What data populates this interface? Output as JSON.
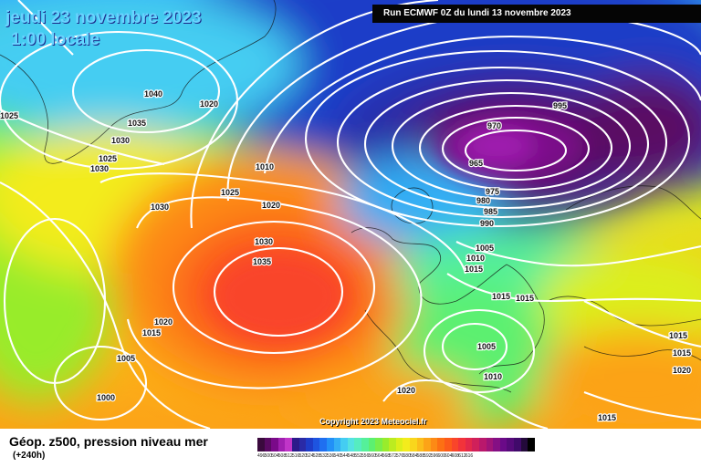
{
  "header": {
    "date": "jeudi 23 novembre 2023",
    "time": "1:00 locale",
    "run": "Run ECMWF 0Z du lundi 13 novembre 2023"
  },
  "copyright": "Copyright 2023 Meteociel.fr",
  "legend": {
    "title": "Géop. z500, pression niveau mer",
    "range": "(+240h)",
    "colors": [
      "#3a0a3d",
      "#5a0a63",
      "#7a0a89",
      "#a01fb0",
      "#c035c8",
      "#2b1a8a",
      "#2a2aa6",
      "#1e3cc8",
      "#1e54e0",
      "#1f6ff0",
      "#2290f7",
      "#33aef5",
      "#44cdf2",
      "#54e2e2",
      "#56ecc0",
      "#55f09a",
      "#5cf070",
      "#78ee4a",
      "#98ec2c",
      "#bcec20",
      "#dcef1a",
      "#f3ec1c",
      "#f9d61c",
      "#fbbd1a",
      "#fca317",
      "#fd8a15",
      "#fd7013",
      "#fc5a1a",
      "#f9452a",
      "#f2333a",
      "#e3284a",
      "#d0205a",
      "#b9186c",
      "#a01478",
      "#850f84",
      "#6a0a88",
      "#560a7a",
      "#400a6a",
      "#230a3a",
      "#000000"
    ],
    "ticks": [
      "496",
      "500",
      "504",
      "508",
      "512",
      "516",
      "520",
      "524",
      "528",
      "532",
      "536",
      "540",
      "544",
      "548",
      "552",
      "556",
      "560",
      "564",
      "568",
      "572",
      "576",
      "580",
      "584",
      "588",
      "592",
      "596",
      "600",
      "604",
      "608",
      "612",
      "616"
    ]
  },
  "isobar_labels": [
    {
      "text": "1040"
    },
    {
      "text": "1020"
    },
    {
      "text": "1025"
    },
    {
      "text": "1035"
    },
    {
      "text": "1030"
    },
    {
      "text": "1025"
    },
    {
      "text": "1030"
    },
    {
      "text": "1010"
    },
    {
      "text": "1025"
    },
    {
      "text": "1020"
    },
    {
      "text": "1030"
    },
    {
      "text": "1030"
    },
    {
      "text": "1035"
    },
    {
      "text": "995"
    },
    {
      "text": "970"
    },
    {
      "text": "965"
    },
    {
      "text": "975"
    },
    {
      "text": "980"
    },
    {
      "text": "985"
    },
    {
      "text": "990"
    },
    {
      "text": "1005"
    },
    {
      "text": "1010"
    },
    {
      "text": "1015"
    },
    {
      "text": "1015"
    },
    {
      "text": "1015"
    },
    {
      "text": "1005"
    },
    {
      "text": "1010"
    },
    {
      "text": "1020"
    },
    {
      "text": "1015"
    },
    {
      "text": "1005"
    },
    {
      "text": "1000"
    },
    {
      "text": "1020"
    },
    {
      "text": "1015"
    },
    {
      "text": "1015"
    },
    {
      "text": "1020"
    },
    {
      "text": "1015"
    }
  ]
}
